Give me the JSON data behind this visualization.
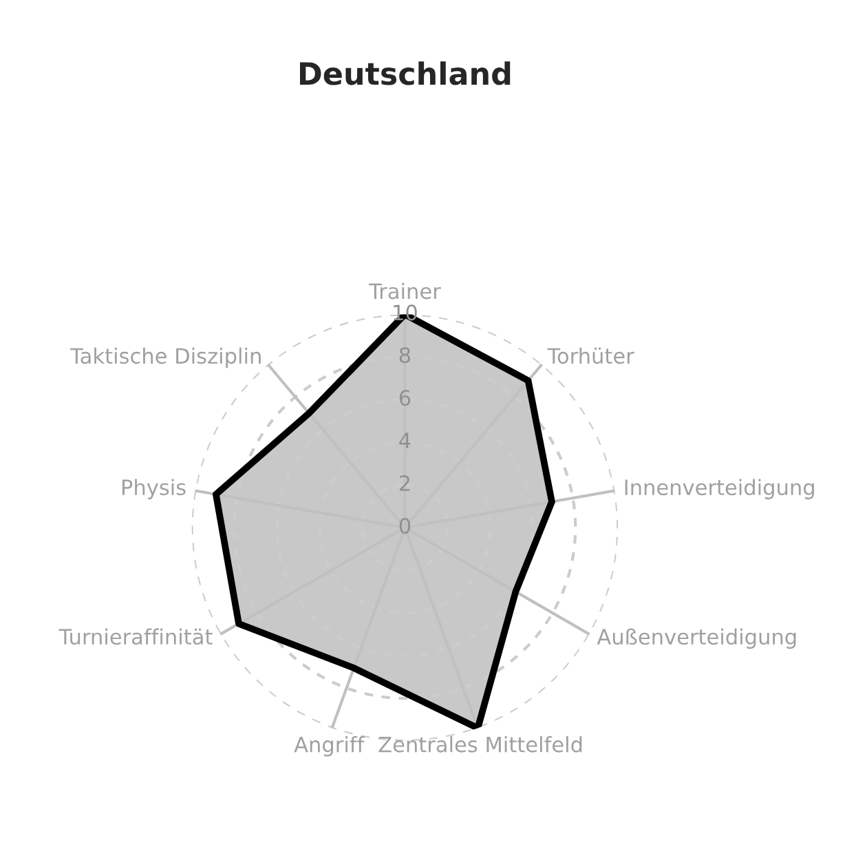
{
  "chart_data": {
    "type": "radar",
    "title": "Deutschland",
    "categories": [
      "Trainer",
      "Torhüter",
      "Innenverteidigung",
      "Außenverteidigung",
      "Zentrales Mittelfeld",
      "Angriff",
      "Turnieraffinität",
      "Physis",
      "Taktische Disziplin"
    ],
    "series": [
      {
        "color": "#000000",
        "values": [
          10,
          9,
          7,
          6,
          10,
          7,
          9,
          9,
          7
        ]
      }
    ],
    "ylim": [
      0,
      10
    ],
    "yticks": [
      0,
      2,
      4,
      6,
      8,
      10
    ],
    "grid": true,
    "legend": false
  }
}
